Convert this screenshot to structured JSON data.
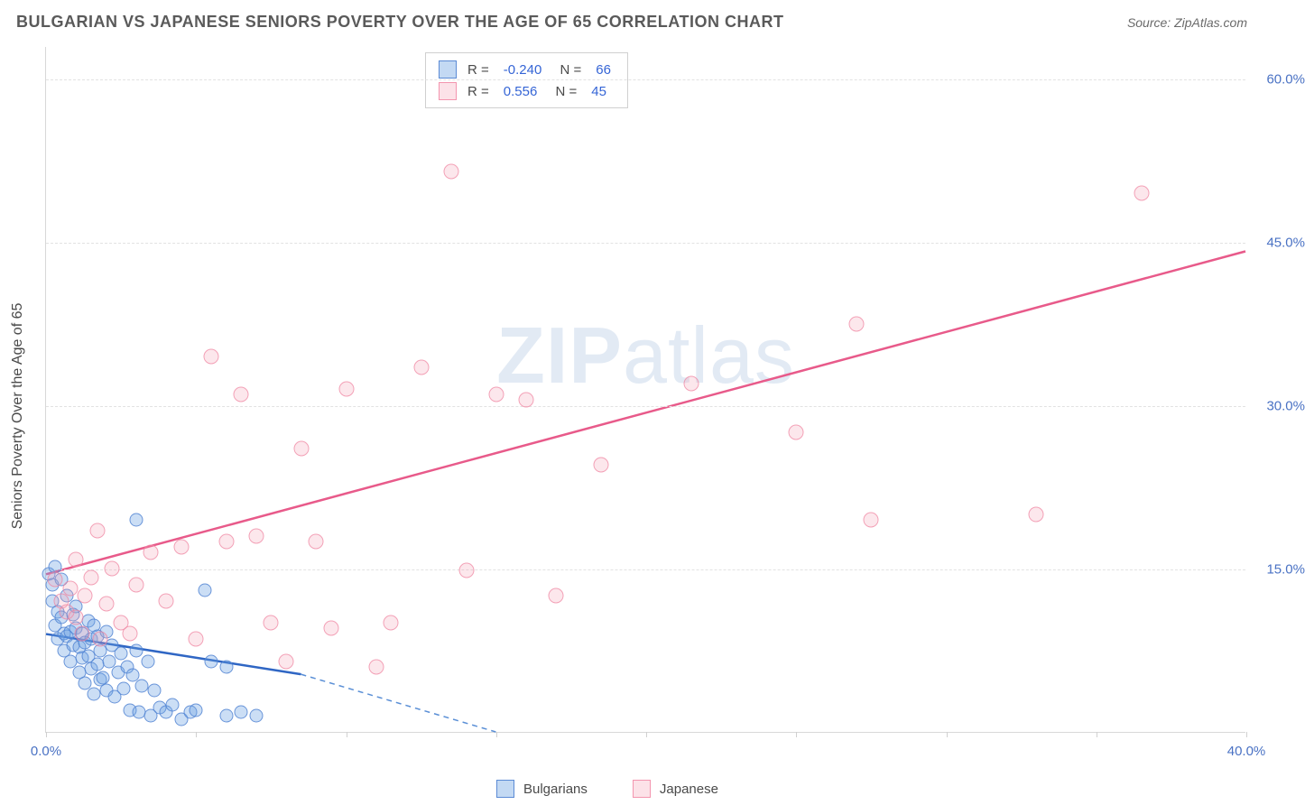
{
  "header": {
    "title": "BULGARIAN VS JAPANESE SENIORS POVERTY OVER THE AGE OF 65 CORRELATION CHART",
    "source": "Source: ZipAtlas.com"
  },
  "chart": {
    "type": "scatter",
    "y_axis_label": "Seniors Poverty Over the Age of 65",
    "xlim": [
      0,
      40
    ],
    "ylim": [
      0,
      63
    ],
    "x_ticks": [
      0,
      5,
      10,
      15,
      20,
      25,
      30,
      35,
      40
    ],
    "x_tick_labels": {
      "0": "0.0%",
      "40": "40.0%"
    },
    "y_ticks": [
      15,
      30,
      45,
      60
    ],
    "y_tick_labels": {
      "15": "15.0%",
      "30": "30.0%",
      "45": "45.0%",
      "60": "60.0%"
    },
    "grid_color": "#e2e2e2",
    "axis_color": "#d8d8d8",
    "background_color": "#ffffff",
    "watermark": {
      "part1": "ZIP",
      "part2": "atlas"
    },
    "series": [
      {
        "name": "Bulgarians",
        "color_fill": "rgba(105,160,225,0.35)",
        "color_stroke": "rgba(80,130,210,0.8)",
        "marker_size": 15,
        "r_value": "-0.240",
        "n_value": "66",
        "trend": {
          "x1": 0,
          "y1": 9.0,
          "x2": 8.5,
          "y2": 5.3,
          "x2_dash": 15.0,
          "y2_dash": 0,
          "solid_color": "#2f66c4",
          "dash_color": "#5a8fd6",
          "width": 2.5
        },
        "points": [
          [
            0.1,
            14.5
          ],
          [
            0.2,
            12.0
          ],
          [
            0.2,
            13.5
          ],
          [
            0.3,
            15.2
          ],
          [
            0.3,
            9.8
          ],
          [
            0.4,
            11.0
          ],
          [
            0.4,
            8.5
          ],
          [
            0.5,
            14.0
          ],
          [
            0.5,
            10.5
          ],
          [
            0.6,
            9.0
          ],
          [
            0.6,
            7.5
          ],
          [
            0.7,
            8.8
          ],
          [
            0.7,
            12.5
          ],
          [
            0.8,
            9.2
          ],
          [
            0.8,
            6.5
          ],
          [
            0.9,
            10.8
          ],
          [
            0.9,
            8.0
          ],
          [
            1.0,
            9.5
          ],
          [
            1.0,
            11.5
          ],
          [
            1.1,
            7.8
          ],
          [
            1.1,
            5.5
          ],
          [
            1.2,
            9.0
          ],
          [
            1.2,
            6.8
          ],
          [
            1.3,
            8.2
          ],
          [
            1.3,
            4.5
          ],
          [
            1.4,
            7.0
          ],
          [
            1.4,
            10.2
          ],
          [
            1.5,
            8.5
          ],
          [
            1.5,
            5.8
          ],
          [
            1.6,
            9.8
          ],
          [
            1.6,
            3.5
          ],
          [
            1.7,
            6.2
          ],
          [
            1.7,
            8.8
          ],
          [
            1.8,
            4.8
          ],
          [
            1.8,
            7.5
          ],
          [
            1.9,
            5.0
          ],
          [
            2.0,
            9.2
          ],
          [
            2.0,
            3.8
          ],
          [
            2.1,
            6.5
          ],
          [
            2.2,
            8.0
          ],
          [
            2.3,
            3.2
          ],
          [
            2.4,
            5.5
          ],
          [
            2.5,
            7.2
          ],
          [
            2.6,
            4.0
          ],
          [
            2.7,
            6.0
          ],
          [
            2.8,
            2.0
          ],
          [
            2.9,
            5.2
          ],
          [
            3.0,
            7.5
          ],
          [
            3.1,
            1.8
          ],
          [
            3.2,
            4.2
          ],
          [
            3.4,
            6.5
          ],
          [
            3.5,
            1.5
          ],
          [
            3.6,
            3.8
          ],
          [
            3.8,
            2.2
          ],
          [
            4.0,
            1.8
          ],
          [
            4.2,
            2.5
          ],
          [
            4.5,
            1.2
          ],
          [
            4.8,
            1.8
          ],
          [
            5.0,
            2.0
          ],
          [
            5.3,
            13.0
          ],
          [
            5.5,
            6.5
          ],
          [
            6.0,
            1.5
          ],
          [
            6.0,
            6.0
          ],
          [
            3.0,
            19.5
          ],
          [
            6.5,
            1.8
          ],
          [
            7.0,
            1.5
          ]
        ]
      },
      {
        "name": "Japanese",
        "color_fill": "rgba(245,160,180,0.25)",
        "color_stroke": "rgba(240,130,160,0.7)",
        "marker_size": 17,
        "r_value": "0.556",
        "n_value": "45",
        "trend": {
          "x1": 0,
          "y1": 14.5,
          "x2": 40,
          "y2": 44.2,
          "solid_color": "#e85a8a",
          "width": 2.5
        },
        "points": [
          [
            0.3,
            14.0
          ],
          [
            0.5,
            12.0
          ],
          [
            0.7,
            11.0
          ],
          [
            0.8,
            13.2
          ],
          [
            1.0,
            10.5
          ],
          [
            1.0,
            15.8
          ],
          [
            1.2,
            9.0
          ],
          [
            1.3,
            12.5
          ],
          [
            1.5,
            14.2
          ],
          [
            1.7,
            18.5
          ],
          [
            1.8,
            8.5
          ],
          [
            2.0,
            11.8
          ],
          [
            2.2,
            15.0
          ],
          [
            2.5,
            10.0
          ],
          [
            2.8,
            9.0
          ],
          [
            3.0,
            13.5
          ],
          [
            3.5,
            16.5
          ],
          [
            4.0,
            12.0
          ],
          [
            4.5,
            17.0
          ],
          [
            5.0,
            8.5
          ],
          [
            5.5,
            34.5
          ],
          [
            6.0,
            17.5
          ],
          [
            6.5,
            31.0
          ],
          [
            7.0,
            18.0
          ],
          [
            7.5,
            10.0
          ],
          [
            8.0,
            6.5
          ],
          [
            8.5,
            26.0
          ],
          [
            9.0,
            17.5
          ],
          [
            9.5,
            9.5
          ],
          [
            10.0,
            31.5
          ],
          [
            11.0,
            6.0
          ],
          [
            11.5,
            10.0
          ],
          [
            12.5,
            33.5
          ],
          [
            13.5,
            51.5
          ],
          [
            14.0,
            14.8
          ],
          [
            15.0,
            31.0
          ],
          [
            16.0,
            30.5
          ],
          [
            17.0,
            12.5
          ],
          [
            18.5,
            24.5
          ],
          [
            21.5,
            32.0
          ],
          [
            25.0,
            27.5
          ],
          [
            27.0,
            37.5
          ],
          [
            27.5,
            19.5
          ],
          [
            33.0,
            20.0
          ],
          [
            36.5,
            49.5
          ]
        ]
      }
    ],
    "bottom_legend": [
      {
        "label": "Bulgarians",
        "swatch": "blue"
      },
      {
        "label": "Japanese",
        "swatch": "pink"
      }
    ]
  }
}
